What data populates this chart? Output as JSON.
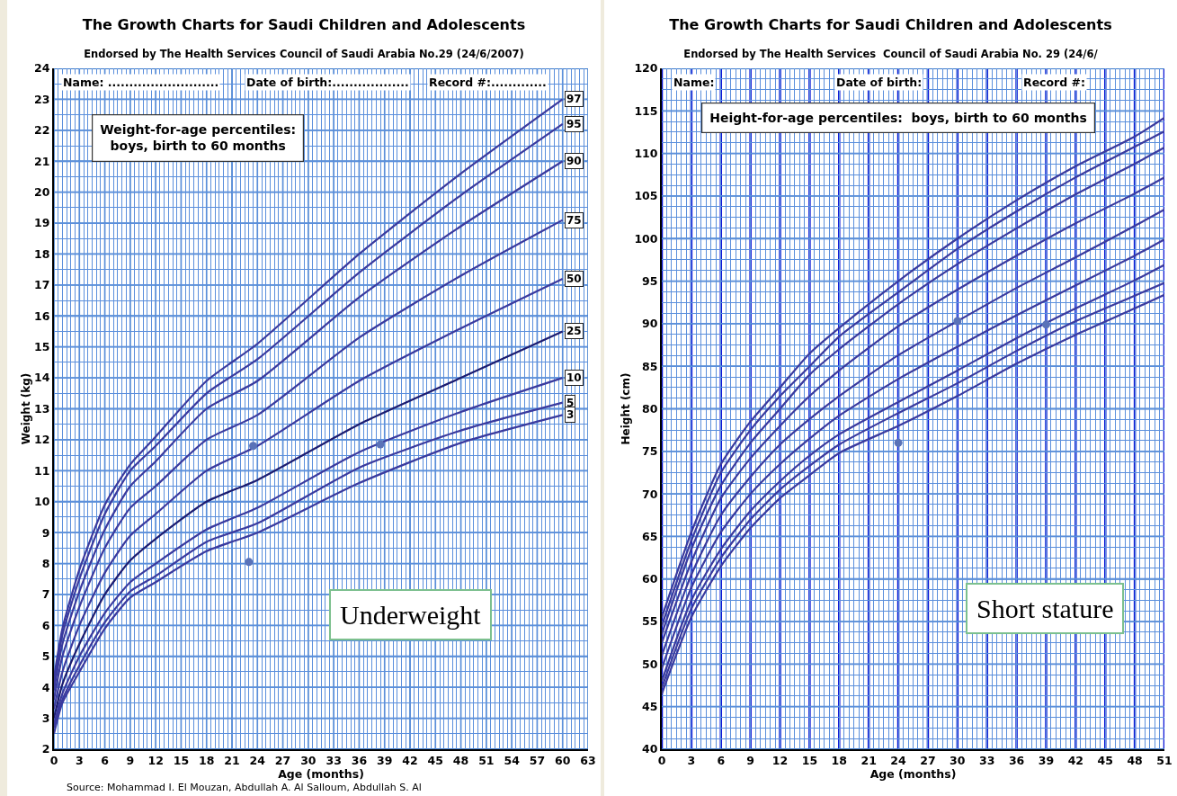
{
  "chart_data": [
    {
      "type": "line",
      "title": "The Growth Charts for Saudi Children and Adolescents",
      "subtitle": "Endorsed by The Health Services Council of Saudi Arabia No.29 (24/6/2007)",
      "xlabel": "Age (months)",
      "ylabel": "Weight (kg)",
      "x": [
        0,
        1,
        3,
        6,
        9,
        12,
        18,
        24,
        36,
        48,
        60
      ],
      "series": [
        {
          "name": "97",
          "color": "#3a3a9e",
          "values": [
            4.3,
            5.9,
            7.8,
            9.9,
            11.2,
            12.1,
            13.9,
            15.1,
            18.0,
            20.6,
            23.0
          ]
        },
        {
          "name": "95",
          "color": "#3a3a9e",
          "values": [
            4.1,
            5.7,
            7.5,
            9.6,
            11.0,
            11.8,
            13.5,
            14.6,
            17.4,
            19.9,
            22.2
          ]
        },
        {
          "name": "90",
          "color": "#3a3a9e",
          "values": [
            3.9,
            5.4,
            7.1,
            9.1,
            10.5,
            11.3,
            13.0,
            13.9,
            16.6,
            18.9,
            21.0
          ]
        },
        {
          "name": "75",
          "color": "#3a3a9e",
          "values": [
            3.6,
            5.0,
            6.6,
            8.5,
            9.8,
            10.5,
            12.0,
            12.8,
            15.3,
            17.3,
            19.1
          ]
        },
        {
          "name": "50",
          "color": "#3a3a9e",
          "values": [
            3.3,
            4.5,
            6.0,
            7.7,
            8.9,
            9.6,
            11.0,
            11.8,
            13.9,
            15.6,
            17.2
          ]
        },
        {
          "name": "25",
          "color": "#1c1c70",
          "values": [
            3.0,
            4.1,
            5.4,
            7.0,
            8.1,
            8.8,
            10.0,
            10.7,
            12.5,
            14.0,
            15.5
          ]
        },
        {
          "name": "10",
          "color": "#3a3a9e",
          "values": [
            2.8,
            3.8,
            5.0,
            6.4,
            7.4,
            8.0,
            9.1,
            9.8,
            11.6,
            12.9,
            14.0
          ]
        },
        {
          "name": "5",
          "color": "#3a3a9e",
          "values": [
            2.7,
            3.6,
            4.7,
            6.1,
            7.1,
            7.6,
            8.7,
            9.3,
            11.1,
            12.3,
            13.2
          ]
        },
        {
          "name": "3",
          "color": "#3a3a9e",
          "values": [
            2.5,
            3.5,
            4.5,
            5.9,
            6.9,
            7.4,
            8.4,
            9.0,
            10.6,
            11.9,
            12.8
          ]
        },
        {
          "type": "scatter",
          "color": "#5a72b8",
          "x": [
            23.5,
            38.5,
            23
          ],
          "values": [
            11.8,
            11.85,
            8.05
          ]
        }
      ],
      "xlim": [
        0,
        63
      ],
      "xticks": [
        0,
        {
          "value": 0.5,
          "label": null
        },
        {
          "value": 1,
          "label": null
        },
        {
          "value": 1.5,
          "label": null
        },
        {
          "value": 2,
          "label": null
        },
        {
          "value": 2.5,
          "label": null
        },
        3,
        {
          "value": 3.5,
          "label": null
        },
        {
          "value": 4,
          "label": null
        },
        {
          "value": 4.5,
          "label": null
        },
        {
          "value": 5,
          "label": null
        },
        {
          "value": 5.5,
          "label": null
        },
        6,
        {
          "value": 6.5,
          "label": null
        },
        {
          "value": 7,
          "label": null
        },
        {
          "value": 7.5,
          "label": null
        },
        {
          "value": 8,
          "label": null
        },
        {
          "value": 8.5,
          "label": null
        },
        9,
        {
          "value": 9.5,
          "label": null
        },
        {
          "value": 10,
          "label": null
        },
        {
          "value": 10.5,
          "label": null
        },
        {
          "value": 11,
          "label": null
        },
        {
          "value": 11.5,
          "label": null
        },
        12,
        {
          "value": 12.5,
          "label": null
        },
        {
          "value": 13,
          "label": null
        },
        {
          "value": 13.5,
          "label": null
        },
        {
          "value": 14,
          "label": null
        },
        {
          "value": 14.5,
          "label": null
        },
        15,
        {
          "value": 15.5,
          "label": null
        },
        {
          "value": 16,
          "label": null
        },
        {
          "value": 16.5,
          "label": null
        },
        {
          "value": 17,
          "label": null
        },
        {
          "value": 17.5,
          "label": null
        },
        18,
        {
          "value": 18.5,
          "label": null
        },
        {
          "value": 19,
          "label": null
        },
        {
          "value": 19.5,
          "label": null
        },
        {
          "value": 20,
          "label": null
        },
        {
          "value": 20.5,
          "label": null
        },
        21,
        {
          "value": 21.5,
          "label": null
        },
        {
          "value": 22,
          "label": null
        },
        {
          "value": 22.5,
          "label": null
        },
        {
          "value": 23,
          "label": null
        },
        {
          "value": 23.5,
          "label": null
        },
        24,
        {
          "value": 24.5,
          "label": null
        },
        {
          "value": 25,
          "label": null
        },
        {
          "value": 25.5,
          "label": null
        },
        {
          "value": 26,
          "label": null
        },
        {
          "value": 26.5,
          "label": null
        },
        27,
        {
          "value": 27.5,
          "label": null
        },
        {
          "value": 28,
          "label": null
        },
        {
          "value": 28.5,
          "label": null
        },
        {
          "value": 29,
          "label": null
        },
        {
          "value": 29.5,
          "label": null
        },
        30,
        {
          "value": 30.5,
          "label": null
        },
        {
          "value": 31,
          "label": null
        },
        {
          "value": 31.5,
          "label": null
        },
        {
          "value": 32,
          "label": null
        },
        {
          "value": 32.5,
          "label": null
        },
        33,
        {
          "value": 33.5,
          "label": null
        },
        {
          "value": 34,
          "label": null
        },
        {
          "value": 34.5,
          "label": null
        },
        {
          "value": 35,
          "label": null
        },
        {
          "value": 35.5,
          "label": null
        },
        36,
        {
          "value": 36.5,
          "label": null
        },
        {
          "value": 37,
          "label": null
        },
        {
          "value": 37.5,
          "label": null
        },
        {
          "value": 38,
          "label": null
        },
        {
          "value": 38.5,
          "label": null
        },
        39,
        {
          "value": 39.5,
          "label": null
        },
        {
          "value": 40,
          "label": null
        },
        {
          "value": 40.5,
          "label": null
        },
        {
          "value": 41,
          "label": null
        },
        {
          "value": 41.5,
          "label": null
        },
        42,
        {
          "value": 42.5,
          "label": null
        },
        {
          "value": 43,
          "label": null
        },
        {
          "value": 43.5,
          "label": null
        },
        {
          "value": 44,
          "label": null
        },
        {
          "value": 44.5,
          "label": null
        },
        45,
        {
          "value": 45.5,
          "label": null
        },
        {
          "value": 46,
          "label": null
        },
        {
          "value": 46.5,
          "label": null
        },
        {
          "value": 47,
          "label": null
        },
        {
          "value": 47.5,
          "label": null
        },
        48,
        {
          "value": 48.5,
          "label": null
        },
        {
          "value": 49,
          "label": null
        },
        {
          "value": 49.5,
          "label": null
        },
        {
          "value": 50,
          "label": null
        },
        {
          "value": 50.5,
          "label": null
        },
        51,
        {
          "value": 51.5,
          "label": null
        },
        {
          "value": 52,
          "label": null
        },
        {
          "value": 52.5,
          "label": null
        },
        {
          "value": 53,
          "label": null
        },
        {
          "value": 53.5,
          "label": null
        },
        54,
        {
          "value": 54.5,
          "label": null
        },
        {
          "value": 55,
          "label": null
        },
        {
          "value": 55.5,
          "label": null
        },
        {
          "value": 56,
          "label": null
        },
        {
          "value": 56.5,
          "label": null
        },
        57,
        {
          "value": 57.5,
          "label": null
        },
        {
          "value": 58,
          "label": null
        },
        {
          "value": 58.5,
          "label": null
        },
        {
          "value": 59,
          "label": null
        },
        {
          "value": 59.5,
          "label": null
        },
        60,
        {
          "value": 60.5,
          "label": null
        },
        {
          "value": 61,
          "label": null
        },
        {
          "value": 61.5,
          "label": null
        },
        {
          "value": 62,
          "label": null
        },
        {
          "value": 62.5,
          "label": null
        },
        63
      ],
      "ylim": [
        2,
        24
      ],
      "yticks": [
        2,
        {
          "value": 2.5,
          "label": null
        },
        3,
        {
          "value": 3.5,
          "label": null
        },
        4,
        {
          "value": 4.5,
          "label": null
        },
        5,
        {
          "value": 5.5,
          "label": null
        },
        6,
        {
          "value": 6.5,
          "label": null
        },
        7,
        {
          "value": 7.5,
          "label": null
        },
        8,
        {
          "value": 8.5,
          "label": null
        },
        9,
        {
          "value": 9.5,
          "label": null
        },
        10,
        {
          "value": 10.5,
          "label": null
        },
        11,
        {
          "value": 11.5,
          "label": null
        },
        12,
        {
          "value": 12.5,
          "label": null
        },
        13,
        {
          "value": 13.5,
          "label": null
        },
        14,
        {
          "value": 14.5,
          "label": null
        },
        15,
        {
          "value": 15.5,
          "label": null
        },
        16,
        {
          "value": 16.5,
          "label": null
        },
        17,
        {
          "value": 17.5,
          "label": null
        },
        18,
        {
          "value": 18.5,
          "label": null
        },
        19,
        {
          "value": 19.5,
          "label": null
        },
        20,
        {
          "value": 20.5,
          "label": null
        },
        21,
        {
          "value": 21.5,
          "label": null
        },
        22,
        {
          "value": 22.5,
          "label": null
        },
        23,
        {
          "value": 23.5,
          "label": null
        },
        24
      ],
      "grid": true,
      "legend": false,
      "line_style": "solid",
      "annotations": [
        "Name: ..........................",
        "Date of birth:..................",
        "Record #:.............",
        "Weight-for-age percentiles:\nboys, birth to 60 months",
        "Underweight",
        "Source: Mohammad I. El Mouzan, Abdullah A. Al Salloum, Abdullah S. Al"
      ]
    },
    {
      "type": "line",
      "title": "The Growth Charts for Saudi Children and Adolescents",
      "subtitle": "Endorsed by The Health Services  Council of Saudi Arabia No. 29 (24/6/",
      "xlabel": "Age (months)",
      "ylabel": "Height (cm)",
      "x": [
        0,
        3,
        6,
        9,
        12,
        15,
        18,
        24,
        30,
        36,
        42,
        48,
        51
      ],
      "series": [
        {
          "color": "#3a3a9e",
          "values": [
            55.5,
            65.5,
            73.5,
            78.5,
            82.5,
            86.5,
            89.5,
            95,
            100,
            104.5,
            108.5,
            112,
            114.2
          ]
        },
        {
          "color": "#3a3a9e",
          "values": [
            54.5,
            64.5,
            72.5,
            77.5,
            81.5,
            85,
            88.5,
            93.7,
            98.8,
            103.2,
            107.2,
            110.8,
            112.6
          ]
        },
        {
          "color": "#3a3a9e",
          "values": [
            53.5,
            63.5,
            71,
            76,
            80,
            84,
            87,
            92.3,
            97,
            101.2,
            105.2,
            108.8,
            110.7
          ]
        },
        {
          "color": "#3a3a9e",
          "values": [
            52.5,
            62,
            69.5,
            74.2,
            78,
            81.5,
            84.5,
            89.7,
            94,
            98,
            101.8,
            105.3,
            107.2
          ]
        },
        {
          "color": "#3a3a9e",
          "values": [
            51,
            60.5,
            67.5,
            72,
            75.8,
            78.8,
            81.5,
            86.3,
            90.3,
            94.2,
            97.8,
            101.5,
            103.4
          ]
        },
        {
          "color": "#3a3a9e",
          "values": [
            49.5,
            59,
            65.5,
            70,
            73.5,
            76.5,
            79.2,
            83.5,
            87.3,
            91,
            94.5,
            98,
            99.9
          ]
        },
        {
          "color": "#3a3a9e",
          "values": [
            48,
            57.5,
            63.5,
            68,
            71.5,
            74.5,
            77,
            80.8,
            84.5,
            88.3,
            91.8,
            95.1,
            96.9
          ]
        },
        {
          "color": "#3a3a9e",
          "values": [
            47.2,
            56.5,
            62.5,
            67,
            70.5,
            73.3,
            75.8,
            79.5,
            83,
            86.8,
            90.3,
            93.3,
            94.8
          ]
        },
        {
          "color": "#3a3a9e",
          "values": [
            46.5,
            55.5,
            61.5,
            66,
            69.5,
            72.2,
            74.8,
            78,
            81.5,
            85.3,
            88.7,
            91.8,
            93.4
          ]
        },
        {
          "type": "scatter",
          "color": "#5a72b8",
          "x": [
            30,
            39,
            24
          ],
          "values": [
            90.3,
            89.9,
            76
          ]
        }
      ],
      "xlim": [
        0,
        51
      ],
      "xticks": [
        0,
        {
          "value": 0.5,
          "label": null
        },
        {
          "value": 1,
          "label": null
        },
        {
          "value": 1.5,
          "label": null
        },
        {
          "value": 2,
          "label": null
        },
        {
          "value": 2.5,
          "label": null
        },
        3,
        {
          "value": 3.5,
          "label": null
        },
        {
          "value": 4,
          "label": null
        },
        {
          "value": 4.5,
          "label": null
        },
        {
          "value": 5,
          "label": null
        },
        {
          "value": 5.5,
          "label": null
        },
        6,
        {
          "value": 6.5,
          "label": null
        },
        {
          "value": 7,
          "label": null
        },
        {
          "value": 7.5,
          "label": null
        },
        {
          "value": 8,
          "label": null
        },
        {
          "value": 8.5,
          "label": null
        },
        9,
        {
          "value": 9.5,
          "label": null
        },
        {
          "value": 10,
          "label": null
        },
        {
          "value": 10.5,
          "label": null
        },
        {
          "value": 11,
          "label": null
        },
        {
          "value": 11.5,
          "label": null
        },
        12,
        {
          "value": 12.5,
          "label": null
        },
        {
          "value": 13,
          "label": null
        },
        {
          "value": 13.5,
          "label": null
        },
        {
          "value": 14,
          "label": null
        },
        {
          "value": 14.5,
          "label": null
        },
        15,
        {
          "value": 15.5,
          "label": null
        },
        {
          "value": 16,
          "label": null
        },
        {
          "value": 16.5,
          "label": null
        },
        {
          "value": 17,
          "label": null
        },
        {
          "value": 17.5,
          "label": null
        },
        18,
        {
          "value": 18.5,
          "label": null
        },
        {
          "value": 19,
          "label": null
        },
        {
          "value": 19.5,
          "label": null
        },
        {
          "value": 20,
          "label": null
        },
        {
          "value": 20.5,
          "label": null
        },
        21,
        {
          "value": 21.5,
          "label": null
        },
        {
          "value": 22,
          "label": null
        },
        {
          "value": 22.5,
          "label": null
        },
        {
          "value": 23,
          "label": null
        },
        {
          "value": 23.5,
          "label": null
        },
        24,
        {
          "value": 24.5,
          "label": null
        },
        {
          "value": 25,
          "label": null
        },
        {
          "value": 25.5,
          "label": null
        },
        {
          "value": 26,
          "label": null
        },
        {
          "value": 26.5,
          "label": null
        },
        27,
        {
          "value": 27.5,
          "label": null
        },
        {
          "value": 28,
          "label": null
        },
        {
          "value": 28.5,
          "label": null
        },
        {
          "value": 29,
          "label": null
        },
        {
          "value": 29.5,
          "label": null
        },
        30,
        {
          "value": 30.5,
          "label": null
        },
        {
          "value": 31,
          "label": null
        },
        {
          "value": 31.5,
          "label": null
        },
        {
          "value": 32,
          "label": null
        },
        {
          "value": 32.5,
          "label": null
        },
        33,
        {
          "value": 33.5,
          "label": null
        },
        {
          "value": 34,
          "label": null
        },
        {
          "value": 34.5,
          "label": null
        },
        {
          "value": 35,
          "label": null
        },
        {
          "value": 35.5,
          "label": null
        },
        36,
        {
          "value": 36.5,
          "label": null
        },
        {
          "value": 37,
          "label": null
        },
        {
          "value": 37.5,
          "label": null
        },
        {
          "value": 38,
          "label": null
        },
        {
          "value": 38.5,
          "label": null
        },
        39,
        {
          "value": 39.5,
          "label": null
        },
        {
          "value": 40,
          "label": null
        },
        {
          "value": 40.5,
          "label": null
        },
        {
          "value": 41,
          "label": null
        },
        {
          "value": 41.5,
          "label": null
        },
        42,
        {
          "value": 42.5,
          "label": null
        },
        {
          "value": 43,
          "label": null
        },
        {
          "value": 43.5,
          "label": null
        },
        {
          "value": 44,
          "label": null
        },
        {
          "value": 44.5,
          "label": null
        },
        45,
        {
          "value": 45.5,
          "label": null
        },
        {
          "value": 46,
          "label": null
        },
        {
          "value": 46.5,
          "label": null
        },
        {
          "value": 47,
          "label": null
        },
        {
          "value": 47.5,
          "label": null
        },
        48,
        {
          "value": 48.5,
          "label": null
        },
        {
          "value": 49,
          "label": null
        },
        {
          "value": 49.5,
          "label": null
        },
        {
          "value": 50,
          "label": null
        },
        {
          "value": 50.5,
          "label": null
        },
        51
      ],
      "ylim": [
        40,
        120
      ],
      "yticks": [
        40,
        {
          "value": 41.25,
          "label": null
        },
        {
          "value": 42.5,
          "label": null
        },
        {
          "value": 43.75,
          "label": null
        },
        45,
        {
          "value": 46.25,
          "label": null
        },
        {
          "value": 47.5,
          "label": null
        },
        {
          "value": 48.75,
          "label": null
        },
        50,
        {
          "value": 51.25,
          "label": null
        },
        {
          "value": 52.5,
          "label": null
        },
        {
          "value": 53.75,
          "label": null
        },
        55,
        {
          "value": 56.25,
          "label": null
        },
        {
          "value": 57.5,
          "label": null
        },
        {
          "value": 58.75,
          "label": null
        },
        60,
        {
          "value": 61.25,
          "label": null
        },
        {
          "value": 62.5,
          "label": null
        },
        {
          "value": 63.75,
          "label": null
        },
        65,
        {
          "value": 66.25,
          "label": null
        },
        {
          "value": 67.5,
          "label": null
        },
        {
          "value": 68.75,
          "label": null
        },
        70,
        {
          "value": 71.25,
          "label": null
        },
        {
          "value": 72.5,
          "label": null
        },
        {
          "value": 73.75,
          "label": null
        },
        75,
        {
          "value": 76.25,
          "label": null
        },
        {
          "value": 77.5,
          "label": null
        },
        {
          "value": 78.75,
          "label": null
        },
        80,
        {
          "value": 81.25,
          "label": null
        },
        {
          "value": 82.5,
          "label": null
        },
        {
          "value": 83.75,
          "label": null
        },
        85,
        {
          "value": 86.25,
          "label": null
        },
        {
          "value": 87.5,
          "label": null
        },
        {
          "value": 88.75,
          "label": null
        },
        90,
        {
          "value": 91.25,
          "label": null
        },
        {
          "value": 92.5,
          "label": null
        },
        {
          "value": 93.75,
          "label": null
        },
        95,
        {
          "value": 96.25,
          "label": null
        },
        {
          "value": 97.5,
          "label": null
        },
        {
          "value": 98.75,
          "label": null
        },
        100,
        {
          "value": 101.25,
          "label": null
        },
        {
          "value": 102.5,
          "label": null
        },
        {
          "value": 103.75,
          "label": null
        },
        105,
        {
          "value": 106.25,
          "label": null
        },
        {
          "value": 107.5,
          "label": null
        },
        {
          "value": 108.75,
          "label": null
        },
        110,
        {
          "value": 111.25,
          "label": null
        },
        {
          "value": 112.5,
          "label": null
        },
        {
          "value": 113.75,
          "label": null
        },
        115,
        {
          "value": 116.25,
          "label": null
        },
        {
          "value": 117.5,
          "label": null
        },
        {
          "value": 118.75,
          "label": null
        },
        120
      ],
      "grid": true,
      "legend": false,
      "line_style": "solid",
      "annotations": [
        "Name:",
        "Date of birth:",
        "Record #:",
        "Height-for-age percentiles:  boys, birth to 60 months",
        "Short stature"
      ]
    }
  ]
}
